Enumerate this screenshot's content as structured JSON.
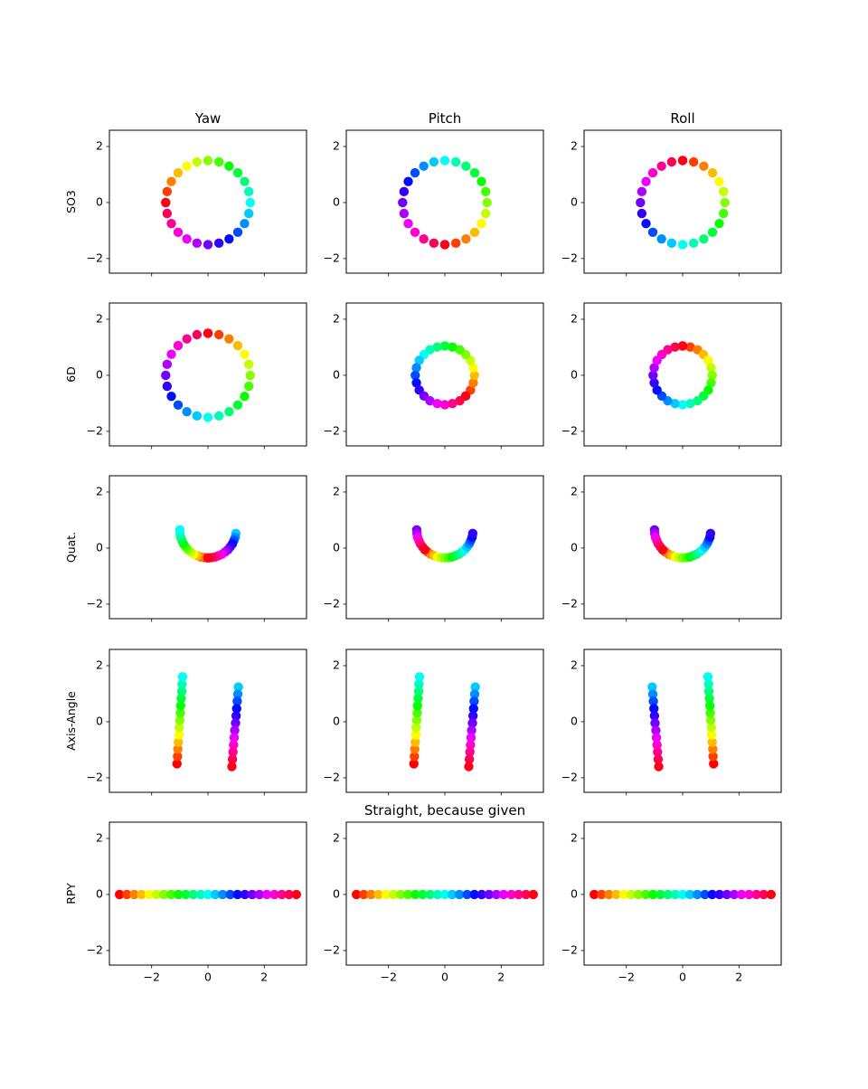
{
  "colormap": "hsv",
  "color_values": [
    -3.14,
    -2.88,
    -2.62,
    -2.36,
    -2.09,
    -1.83,
    -1.57,
    -1.31,
    -1.05,
    -0.79,
    -0.52,
    -0.26,
    0,
    0.26,
    0.52,
    0.79,
    1.05,
    1.31,
    1.57,
    1.83,
    2.09,
    2.36,
    2.62,
    2.88,
    3.14
  ],
  "chart_data": [
    {
      "type": "scatter",
      "title": "Yaw",
      "ylabel": "SO3",
      "x": [
        -1.5,
        -1.45,
        -1.3,
        -1.06,
        -0.75,
        -0.39,
        0,
        0.39,
        0.75,
        1.06,
        1.3,
        1.45,
        1.5,
        1.45,
        1.3,
        1.06,
        0.75,
        0.39,
        0,
        -0.39,
        -0.75,
        -1.06,
        -1.3,
        -1.45,
        -1.5
      ],
      "y": [
        0,
        0.39,
        0.75,
        1.06,
        1.3,
        1.45,
        1.5,
        1.45,
        1.3,
        1.06,
        0.75,
        0.39,
        0,
        -0.39,
        -0.75,
        -1.06,
        -1.3,
        -1.45,
        -1.5,
        -1.45,
        -1.3,
        -1.06,
        -0.75,
        -0.39,
        0
      ],
      "xlim": [
        -3.5,
        3.5
      ],
      "ylim": [
        -2.52,
        2.58
      ],
      "xticks": [
        -2,
        0,
        2
      ],
      "xtick_labels": false,
      "yticks": [
        {
          "value": -2,
          "label": "−2"
        },
        0,
        2
      ]
    },
    {
      "type": "scatter",
      "title": "Pitch",
      "x": [
        0,
        0.39,
        0.75,
        1.06,
        1.3,
        1.45,
        1.5,
        1.45,
        1.3,
        1.06,
        0.75,
        0.39,
        0,
        -0.39,
        -0.75,
        -1.06,
        -1.3,
        -1.45,
        -1.5,
        -1.45,
        -1.3,
        -1.06,
        -0.75,
        -0.39,
        0
      ],
      "y": [
        -1.5,
        -1.45,
        -1.3,
        -1.06,
        -0.75,
        -0.39,
        0,
        0.39,
        0.75,
        1.06,
        1.3,
        1.45,
        1.5,
        1.45,
        1.3,
        1.06,
        0.75,
        0.39,
        0,
        -0.39,
        -0.75,
        -1.06,
        -1.3,
        -1.45,
        -1.5
      ],
      "xlim": [
        -3.5,
        3.5
      ],
      "ylim": [
        -2.52,
        2.58
      ],
      "xticks": [
        -2,
        0,
        2
      ],
      "xtick_labels": false,
      "yticks": [
        {
          "value": -2,
          "label": "−2"
        },
        0,
        2
      ]
    },
    {
      "type": "scatter",
      "title": "Roll",
      "x": [
        0,
        0.39,
        0.75,
        1.06,
        1.3,
        1.45,
        1.5,
        1.45,
        1.3,
        1.06,
        0.75,
        0.39,
        0,
        -0.39,
        -0.75,
        -1.06,
        -1.3,
        -1.45,
        -1.5,
        -1.45,
        -1.3,
        -1.06,
        -0.75,
        -0.39,
        0
      ],
      "y": [
        1.5,
        1.45,
        1.3,
        1.06,
        0.75,
        0.39,
        0,
        -0.39,
        -0.75,
        -1.06,
        -1.3,
        -1.45,
        -1.5,
        -1.45,
        -1.3,
        -1.06,
        -0.75,
        -0.39,
        0,
        0.39,
        0.75,
        1.06,
        1.3,
        1.45,
        1.5
      ],
      "xlim": [
        -3.5,
        3.5
      ],
      "ylim": [
        -2.52,
        2.58
      ],
      "xticks": [
        -2,
        0,
        2
      ],
      "xtick_labels": false,
      "yticks": [
        {
          "value": -2,
          "label": "−2"
        },
        0,
        2
      ]
    },
    {
      "type": "scatter",
      "ylabel": "6D",
      "x": [
        0,
        0.39,
        0.75,
        1.06,
        1.3,
        1.45,
        1.5,
        1.45,
        1.3,
        1.06,
        0.75,
        0.39,
        0,
        -0.39,
        -0.75,
        -1.06,
        -1.3,
        -1.45,
        -1.5,
        -1.45,
        -1.3,
        -1.06,
        -0.75,
        -0.39,
        0
      ],
      "y": [
        1.5,
        1.45,
        1.3,
        1.06,
        0.75,
        0.39,
        0,
        -0.39,
        -0.75,
        -1.06,
        -1.3,
        -1.45,
        -1.5,
        -1.45,
        -1.3,
        -1.06,
        -0.75,
        -0.39,
        0,
        0.39,
        0.75,
        1.06,
        1.3,
        1.45,
        1.5
      ],
      "xlim": [
        -3.5,
        3.5
      ],
      "ylim": [
        -2.52,
        2.58
      ],
      "xticks": [
        -2,
        0,
        2
      ],
      "xtick_labels": false,
      "yticks": [
        {
          "value": -2,
          "label": "−2"
        },
        0,
        2
      ]
    },
    {
      "type": "scatter",
      "x": [
        0.74,
        0.91,
        1.01,
        1.05,
        1.01,
        0.91,
        0.74,
        0.53,
        0.27,
        0,
        -0.27,
        -0.53,
        -0.74,
        -0.91,
        -1.01,
        -1.05,
        -1.01,
        -0.91,
        -0.74,
        -0.53,
        -0.27,
        0,
        0.27,
        0.53,
        0.74
      ],
      "y": [
        -0.74,
        -0.53,
        -0.27,
        0,
        0.27,
        0.53,
        0.74,
        0.91,
        1.01,
        1.05,
        1.01,
        0.91,
        0.74,
        0.53,
        0.27,
        0,
        -0.27,
        -0.53,
        -0.74,
        -0.91,
        -1.01,
        -1.05,
        -1.01,
        -0.91,
        -0.74
      ],
      "xlim": [
        -3.5,
        3.5
      ],
      "ylim": [
        -2.52,
        2.58
      ],
      "xticks": [
        -2,
        0,
        2
      ],
      "xtick_labels": false,
      "yticks": [
        {
          "value": -2,
          "label": "−2"
        },
        0,
        2
      ]
    },
    {
      "type": "scatter",
      "x": [
        0,
        0.27,
        0.53,
        0.74,
        0.91,
        1.01,
        1.05,
        1.01,
        0.91,
        0.74,
        0.53,
        0.27,
        0,
        -0.27,
        -0.53,
        -0.74,
        -0.91,
        -1.01,
        -1.05,
        -1.01,
        -0.91,
        -0.74,
        -0.53,
        -0.27,
        0
      ],
      "y": [
        1.05,
        1.01,
        0.91,
        0.74,
        0.53,
        0.27,
        0,
        -0.27,
        -0.53,
        -0.74,
        -0.91,
        -1.01,
        -1.05,
        -1.01,
        -0.91,
        -0.74,
        -0.53,
        -0.27,
        0,
        0.27,
        0.53,
        0.74,
        0.91,
        1.01,
        1.05
      ],
      "xlim": [
        -3.5,
        3.5
      ],
      "ylim": [
        -2.52,
        2.58
      ],
      "xticks": [
        -2,
        0,
        2
      ],
      "xtick_labels": false,
      "yticks": [
        {
          "value": -2,
          "label": "−2"
        },
        0,
        2
      ]
    },
    {
      "type": "scatter",
      "ylabel": "Quat.",
      "x": [
        0,
        -0.13,
        -0.26,
        -0.38,
        -0.5,
        -0.61,
        -0.71,
        -0.79,
        -0.87,
        -0.92,
        -0.97,
        -0.99,
        -1,
        0.99,
        0.97,
        0.92,
        0.87,
        0.79,
        0.71,
        0.61,
        0.5,
        0.38,
        0.26,
        0.13,
        0
      ],
      "y": [
        -0.35,
        -0.34,
        -0.32,
        -0.27,
        -0.22,
        -0.14,
        -0.06,
        0.04,
        0.15,
        0.27,
        0.39,
        0.52,
        0.65,
        0.52,
        0.39,
        0.27,
        0.15,
        0.04,
        -0.06,
        -0.14,
        -0.22,
        -0.27,
        -0.32,
        -0.34,
        -0.35
      ],
      "xlim": [
        -3.5,
        3.5
      ],
      "ylim": [
        -2.52,
        2.58
      ],
      "xticks": [
        -2,
        0,
        2
      ],
      "xtick_labels": false,
      "yticks": [
        {
          "value": -2,
          "label": "−2"
        },
        0,
        2
      ]
    },
    {
      "type": "scatter",
      "x": [
        -0.71,
        -0.61,
        -0.5,
        -0.38,
        -0.26,
        -0.13,
        0,
        0.13,
        0.26,
        0.38,
        0.5,
        0.61,
        0.71,
        0.79,
        0.87,
        0.92,
        0.97,
        0.99,
        -1,
        -0.99,
        -0.97,
        -0.92,
        -0.87,
        -0.79,
        -0.71
      ],
      "y": [
        -0.06,
        -0.14,
        -0.22,
        -0.27,
        -0.32,
        -0.34,
        -0.35,
        -0.34,
        -0.32,
        -0.27,
        -0.22,
        -0.14,
        -0.06,
        0.04,
        0.15,
        0.27,
        0.39,
        0.52,
        0.65,
        0.52,
        0.39,
        0.27,
        0.15,
        0.04,
        -0.06
      ],
      "xlim": [
        -3.5,
        3.5
      ],
      "ylim": [
        -2.52,
        2.58
      ],
      "xticks": [
        -2,
        0,
        2
      ],
      "xtick_labels": false,
      "yticks": [
        {
          "value": -2,
          "label": "−2"
        },
        0,
        2
      ]
    },
    {
      "type": "scatter",
      "x": [
        -0.71,
        -0.61,
        -0.5,
        -0.38,
        -0.26,
        -0.13,
        0,
        0.13,
        0.26,
        0.38,
        0.5,
        0.61,
        0.71,
        0.79,
        0.87,
        0.92,
        0.97,
        0.99,
        -1,
        -0.99,
        -0.97,
        -0.92,
        -0.87,
        -0.79,
        -0.71
      ],
      "y": [
        -0.06,
        -0.14,
        -0.22,
        -0.27,
        -0.32,
        -0.34,
        -0.35,
        -0.34,
        -0.32,
        -0.27,
        -0.22,
        -0.14,
        -0.06,
        0.04,
        0.15,
        0.27,
        0.39,
        0.52,
        0.65,
        0.52,
        0.39,
        0.27,
        0.15,
        0.04,
        -0.06
      ],
      "xlim": [
        -3.5,
        3.5
      ],
      "ylim": [
        -2.52,
        2.58
      ],
      "xticks": [
        -2,
        0,
        2
      ],
      "xtick_labels": false,
      "yticks": [
        {
          "value": -2,
          "label": "−2"
        },
        0,
        2
      ]
    },
    {
      "type": "scatter",
      "ylabel": "Axis-Angle",
      "x": [
        -1.1,
        -1.08,
        -1.07,
        -1.05,
        -1.03,
        -1.02,
        -1,
        -0.98,
        -0.97,
        -0.95,
        -0.93,
        -0.92,
        -0.9,
        1.08,
        1.06,
        1.04,
        1.02,
        1.0,
        0.98,
        0.95,
        0.93,
        0.91,
        0.89,
        0.87,
        0.85
      ],
      "y": [
        -1.5,
        -1.24,
        -0.98,
        -0.73,
        -0.47,
        -0.21,
        0.05,
        0.31,
        0.57,
        0.83,
        1.08,
        1.34,
        1.6,
        1.24,
        0.98,
        0.73,
        0.47,
        0.21,
        -0.05,
        -0.31,
        -0.57,
        -0.83,
        -1.08,
        -1.34,
        -1.6
      ],
      "xlim": [
        -3.5,
        3.5
      ],
      "ylim": [
        -2.52,
        2.58
      ],
      "xticks": [
        -2,
        0,
        2
      ],
      "xtick_labels": false,
      "yticks": [
        {
          "value": -2,
          "label": "−2"
        },
        0,
        2
      ]
    },
    {
      "type": "scatter",
      "x": [
        -1.1,
        -1.08,
        -1.07,
        -1.05,
        -1.03,
        -1.02,
        -1,
        -0.98,
        -0.97,
        -0.95,
        -0.93,
        -0.92,
        -0.9,
        1.08,
        1.06,
        1.04,
        1.02,
        1.0,
        0.98,
        0.95,
        0.93,
        0.91,
        0.89,
        0.87,
        0.85
      ],
      "y": [
        -1.5,
        -1.24,
        -0.98,
        -0.73,
        -0.47,
        -0.21,
        0.05,
        0.31,
        0.57,
        0.83,
        1.08,
        1.34,
        1.6,
        1.24,
        0.98,
        0.73,
        0.47,
        0.21,
        -0.05,
        -0.31,
        -0.57,
        -0.83,
        -1.08,
        -1.34,
        -1.6
      ],
      "xlim": [
        -3.5,
        3.5
      ],
      "ylim": [
        -2.52,
        2.58
      ],
      "xticks": [
        -2,
        0,
        2
      ],
      "xtick_labels": false,
      "yticks": [
        {
          "value": -2,
          "label": "−2"
        },
        0,
        2
      ]
    },
    {
      "type": "scatter",
      "x": [
        1.1,
        1.08,
        1.07,
        1.05,
        1.03,
        1.02,
        1,
        0.98,
        0.97,
        0.95,
        0.93,
        0.92,
        0.9,
        -1.08,
        -1.06,
        -1.04,
        -1.02,
        -1.0,
        -0.98,
        -0.95,
        -0.93,
        -0.91,
        -0.89,
        -0.87,
        -0.85
      ],
      "y": [
        -1.5,
        -1.24,
        -0.98,
        -0.73,
        -0.47,
        -0.21,
        0.05,
        0.31,
        0.57,
        0.83,
        1.08,
        1.34,
        1.6,
        1.24,
        0.98,
        0.73,
        0.47,
        0.21,
        -0.05,
        -0.31,
        -0.57,
        -0.83,
        -1.08,
        -1.34,
        -1.6
      ],
      "xlim": [
        -3.5,
        3.5
      ],
      "ylim": [
        -2.52,
        2.58
      ],
      "xticks": [
        -2,
        0,
        2
      ],
      "xtick_labels": false,
      "yticks": [
        {
          "value": -2,
          "label": "−2"
        },
        0,
        2
      ]
    },
    {
      "type": "scatter",
      "ylabel": "RPY",
      "x": [
        -3.14,
        -2.88,
        -2.62,
        -2.36,
        -2.09,
        -1.83,
        -1.57,
        -1.31,
        -1.05,
        -0.79,
        -0.52,
        -0.26,
        0,
        0.26,
        0.52,
        0.79,
        1.05,
        1.31,
        1.57,
        1.83,
        2.09,
        2.36,
        2.62,
        2.88,
        3.14
      ],
      "y": [
        0,
        0,
        0,
        0,
        0,
        0,
        0,
        0,
        0,
        0,
        0,
        0,
        0,
        0,
        0,
        0,
        0,
        0,
        0,
        0,
        0,
        0,
        0,
        0,
        0
      ],
      "xlim": [
        -3.5,
        3.5
      ],
      "ylim": [
        -2.52,
        2.58
      ],
      "xticks": [
        {
          "value": -2,
          "label": "−2"
        },
        0,
        2
      ],
      "xtick_labels": true,
      "yticks": [
        {
          "value": -2,
          "label": "−2"
        },
        0,
        2
      ]
    },
    {
      "type": "scatter",
      "title": "Straight, because given",
      "x": [
        -3.14,
        -2.88,
        -2.62,
        -2.36,
        -2.09,
        -1.83,
        -1.57,
        -1.31,
        -1.05,
        -0.79,
        -0.52,
        -0.26,
        0,
        0.26,
        0.52,
        0.79,
        1.05,
        1.31,
        1.57,
        1.83,
        2.09,
        2.36,
        2.62,
        2.88,
        3.14
      ],
      "y": [
        0,
        0,
        0,
        0,
        0,
        0,
        0,
        0,
        0,
        0,
        0,
        0,
        0,
        0,
        0,
        0,
        0,
        0,
        0,
        0,
        0,
        0,
        0,
        0,
        0
      ],
      "xlim": [
        -3.5,
        3.5
      ],
      "ylim": [
        -2.52,
        2.58
      ],
      "xticks": [
        {
          "value": -2,
          "label": "−2"
        },
        0,
        2
      ],
      "xtick_labels": true,
      "yticks": [
        {
          "value": -2,
          "label": "−2"
        },
        0,
        2
      ]
    },
    {
      "type": "scatter",
      "x": [
        -3.14,
        -2.88,
        -2.62,
        -2.36,
        -2.09,
        -1.83,
        -1.57,
        -1.31,
        -1.05,
        -0.79,
        -0.52,
        -0.26,
        0,
        0.26,
        0.52,
        0.79,
        1.05,
        1.31,
        1.57,
        1.83,
        2.09,
        2.36,
        2.62,
        2.88,
        3.14
      ],
      "y": [
        0,
        0,
        0,
        0,
        0,
        0,
        0,
        0,
        0,
        0,
        0,
        0,
        0,
        0,
        0,
        0,
        0,
        0,
        0,
        0,
        0,
        0,
        0,
        0,
        0
      ],
      "xlim": [
        -3.5,
        3.5
      ],
      "ylim": [
        -2.52,
        2.58
      ],
      "xticks": [
        {
          "value": -2,
          "label": "−2"
        },
        0,
        2
      ],
      "xtick_labels": true,
      "yticks": [
        {
          "value": -2,
          "label": "−2"
        },
        0,
        2
      ]
    }
  ]
}
